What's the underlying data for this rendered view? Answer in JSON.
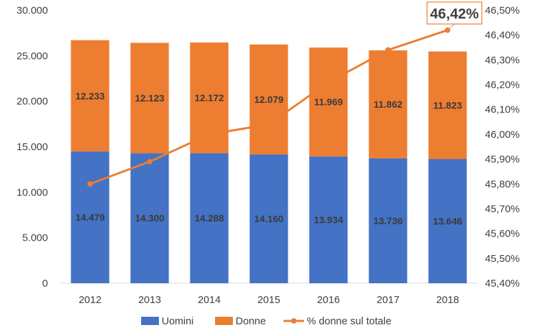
{
  "chart_data": {
    "type": "bar",
    "stacked": true,
    "categories": [
      "2012",
      "2013",
      "2014",
      "2015",
      "2016",
      "2017",
      "2018"
    ],
    "series": [
      {
        "name": "Uomini",
        "kind": "bar",
        "axis": "left",
        "color": "#4472c4",
        "values": [
          14479,
          14300,
          14288,
          14160,
          13934,
          13736,
          13646
        ],
        "labels": [
          "14.479",
          "14.300",
          "14.288",
          "14.160",
          "13.934",
          "13.736",
          "13.646"
        ]
      },
      {
        "name": "Donne",
        "kind": "bar",
        "axis": "left",
        "color": "#ed7d31",
        "values": [
          12233,
          12123,
          12172,
          12079,
          11969,
          11862,
          11823
        ],
        "labels": [
          "12.233",
          "12.123",
          "12.172",
          "12.079",
          "11.969",
          "11.862",
          "11.823"
        ]
      },
      {
        "name": "% donne sul totale",
        "kind": "line",
        "axis": "right",
        "color": "#ed7d31",
        "values": [
          45.8,
          45.89,
          46.0,
          46.04,
          46.21,
          46.34,
          46.42
        ]
      }
    ],
    "left_axis": {
      "ylim": [
        0,
        30000
      ],
      "ticks": [
        0,
        5000,
        10000,
        15000,
        20000,
        25000,
        30000
      ],
      "tick_labels": [
        "0",
        "5.000",
        "10.000",
        "15.000",
        "20.000",
        "25.000",
        "30.000"
      ]
    },
    "right_axis": {
      "ylim": [
        45.4,
        46.5
      ],
      "ticks": [
        45.4,
        45.5,
        45.6,
        45.7,
        45.8,
        45.9,
        46.0,
        46.1,
        46.2,
        46.3,
        46.4,
        46.5
      ],
      "tick_labels": [
        "45,40%",
        "45,50%",
        "45,60%",
        "45,70%",
        "45,80%",
        "45,90%",
        "46,00%",
        "46,10%",
        "46,20%",
        "46,30%",
        "46,40%",
        "46,50%"
      ]
    },
    "annotation": {
      "text": "46,42%",
      "category": "2018",
      "series": "% donne sul totale"
    },
    "grid": false,
    "legend_position": "bottom"
  }
}
